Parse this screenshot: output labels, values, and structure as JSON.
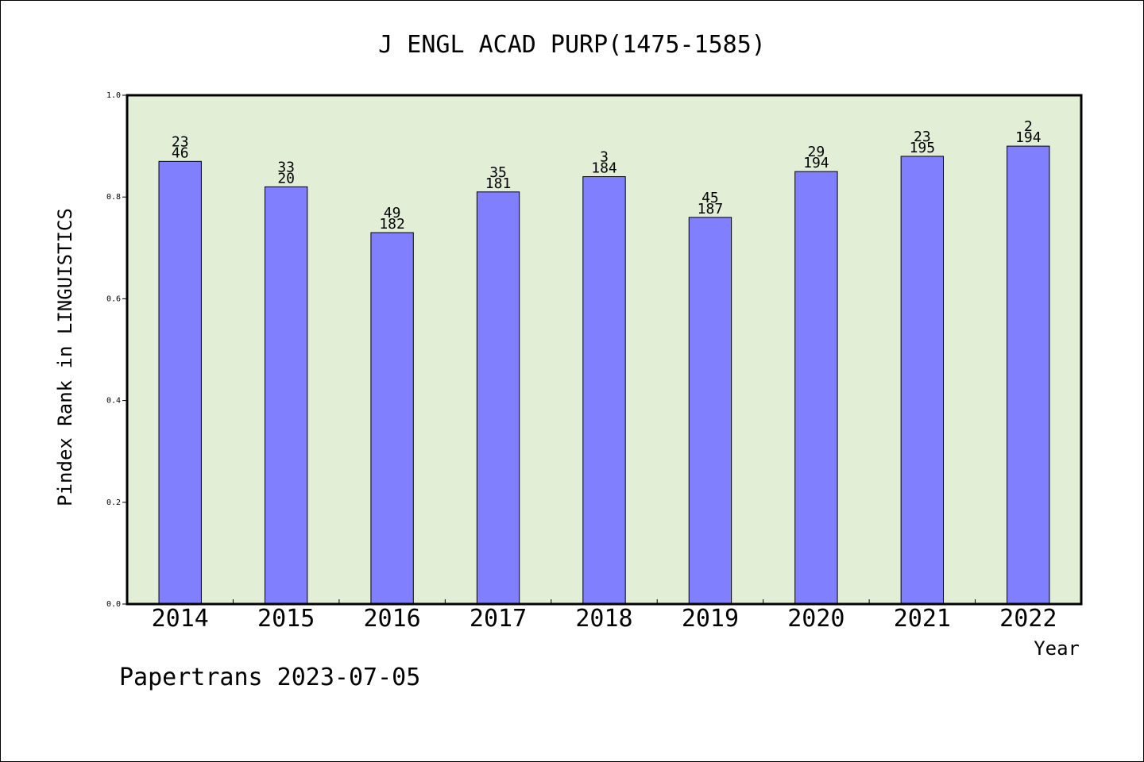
{
  "chart_data": {
    "type": "bar",
    "title": "J ENGL ACAD PURP(1475-1585)",
    "xlabel": "Year",
    "ylabel": "Pindex Rank in LINGUISTICS",
    "categories": [
      "2014",
      "2015",
      "2016",
      "2017",
      "2018",
      "2019",
      "2020",
      "2021",
      "2022"
    ],
    "values": [
      0.87,
      0.82,
      0.73,
      0.81,
      0.84,
      0.76,
      0.85,
      0.88,
      0.9
    ],
    "labels_top": [
      "23",
      "33",
      "49",
      "35",
      "3",
      "45",
      "29",
      "23",
      "2"
    ],
    "labels_bottom": [
      "46",
      "20",
      "182",
      "181",
      "184",
      "187",
      "194",
      "195",
      "194"
    ],
    "ylim": [
      0,
      1.0
    ],
    "yticks": [
      "0.0",
      "0.2",
      "0.4",
      "0.6",
      "0.8",
      "1.0"
    ],
    "grid": false,
    "colors": {
      "bar": "#8080ff",
      "plot_background": "#e2efd6",
      "axis": "#000000"
    }
  },
  "footer": {
    "credit": "Papertrans 2023-07-05"
  }
}
